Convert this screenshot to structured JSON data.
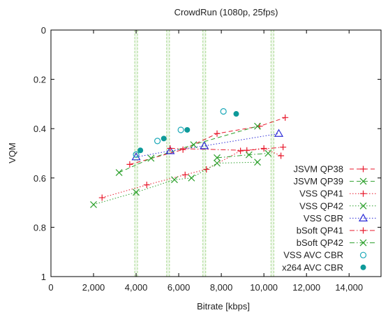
{
  "chart_data": {
    "type": "scatter",
    "title": "CrowdRun (1080p, 25fps)",
    "xlabel": "Bitrate [kbps]",
    "ylabel": "VQM",
    "xlim": [
      0,
      15500
    ],
    "ylim": [
      1,
      0
    ],
    "y_axis_inverted": true,
    "x_ticks": [
      0,
      2000,
      4000,
      6000,
      8000,
      10000,
      12000,
      14000
    ],
    "x_tick_labels": [
      "0",
      "2,000",
      "4,000",
      "6,000",
      "8,000",
      "10,000",
      "12,000",
      "14,000"
    ],
    "y_ticks": [
      0,
      0.2,
      0.4,
      0.6,
      0.8,
      1
    ],
    "y_tick_labels": [
      "0",
      "0.2",
      "0.4",
      "0.6",
      "0.8",
      "1"
    ],
    "grid": false,
    "vertical_bands": [
      4000,
      5500,
      7200,
      10400
    ],
    "band_color": "#a8d890",
    "legend_position": "right",
    "series": [
      {
        "name": "JSVM QP38",
        "color": "#e8192c",
        "marker": "plus",
        "line": "dashed",
        "points": [
          [
            3700,
            0.545
          ],
          [
            6200,
            0.485
          ],
          [
            7800,
            0.42
          ],
          [
            9800,
            0.39
          ],
          [
            11000,
            0.355
          ]
        ]
      },
      {
        "name": "JSVM QP39",
        "color": "#2ca02c",
        "marker": "cross",
        "line": "dashed",
        "points": [
          [
            3200,
            0.578
          ],
          [
            4700,
            0.52
          ],
          [
            6700,
            0.465
          ],
          [
            9700,
            0.39
          ]
        ]
      },
      {
        "name": "VSS QP41",
        "color": "#e8192c",
        "marker": "plus",
        "line": "dotted",
        "points": [
          [
            2400,
            0.68
          ],
          [
            4500,
            0.628
          ],
          [
            6300,
            0.587
          ],
          [
            7300,
            0.565
          ],
          [
            8900,
            0.49
          ],
          [
            10000,
            0.48
          ],
          [
            10800,
            0.51
          ]
        ]
      },
      {
        "name": "VSS QP42",
        "color": "#2ca02c",
        "marker": "cross",
        "line": "dotted",
        "points": [
          [
            2000,
            0.708
          ],
          [
            4000,
            0.658
          ],
          [
            5800,
            0.607
          ],
          [
            6600,
            0.6
          ],
          [
            7800,
            0.54
          ],
          [
            9700,
            0.536
          ]
        ]
      },
      {
        "name": "VSS CBR",
        "color": "#2b2bd6",
        "marker": "triangle",
        "line": "dotted",
        "points": [
          [
            4000,
            0.515
          ],
          [
            5600,
            0.49
          ],
          [
            7200,
            0.47
          ],
          [
            10700,
            0.42
          ]
        ]
      },
      {
        "name": "bSoft QP41",
        "color": "#e8192c",
        "marker": "plus",
        "line": "dashdot",
        "points": [
          [
            5600,
            0.48
          ],
          [
            9200,
            0.488
          ],
          [
            10900,
            0.475
          ]
        ]
      },
      {
        "name": "bSoft QP42",
        "color": "#2ca02c",
        "marker": "cross",
        "line": "dashdot",
        "points": [
          [
            7800,
            0.518
          ],
          [
            9300,
            0.506
          ],
          [
            10200,
            0.5
          ]
        ]
      },
      {
        "name": "VSS AVC CBR",
        "color": "#1aa8b8",
        "marker": "circle-open",
        "line": "none",
        "points": [
          [
            4000,
            0.505
          ],
          [
            5000,
            0.45
          ],
          [
            6100,
            0.405
          ],
          [
            8100,
            0.33
          ]
        ]
      },
      {
        "name": "x264 AVC CBR",
        "color": "#0e9a9a",
        "marker": "circle-filled",
        "line": "none",
        "points": [
          [
            4200,
            0.488
          ],
          [
            5300,
            0.44
          ],
          [
            6400,
            0.405
          ],
          [
            8700,
            0.34
          ]
        ]
      }
    ]
  }
}
